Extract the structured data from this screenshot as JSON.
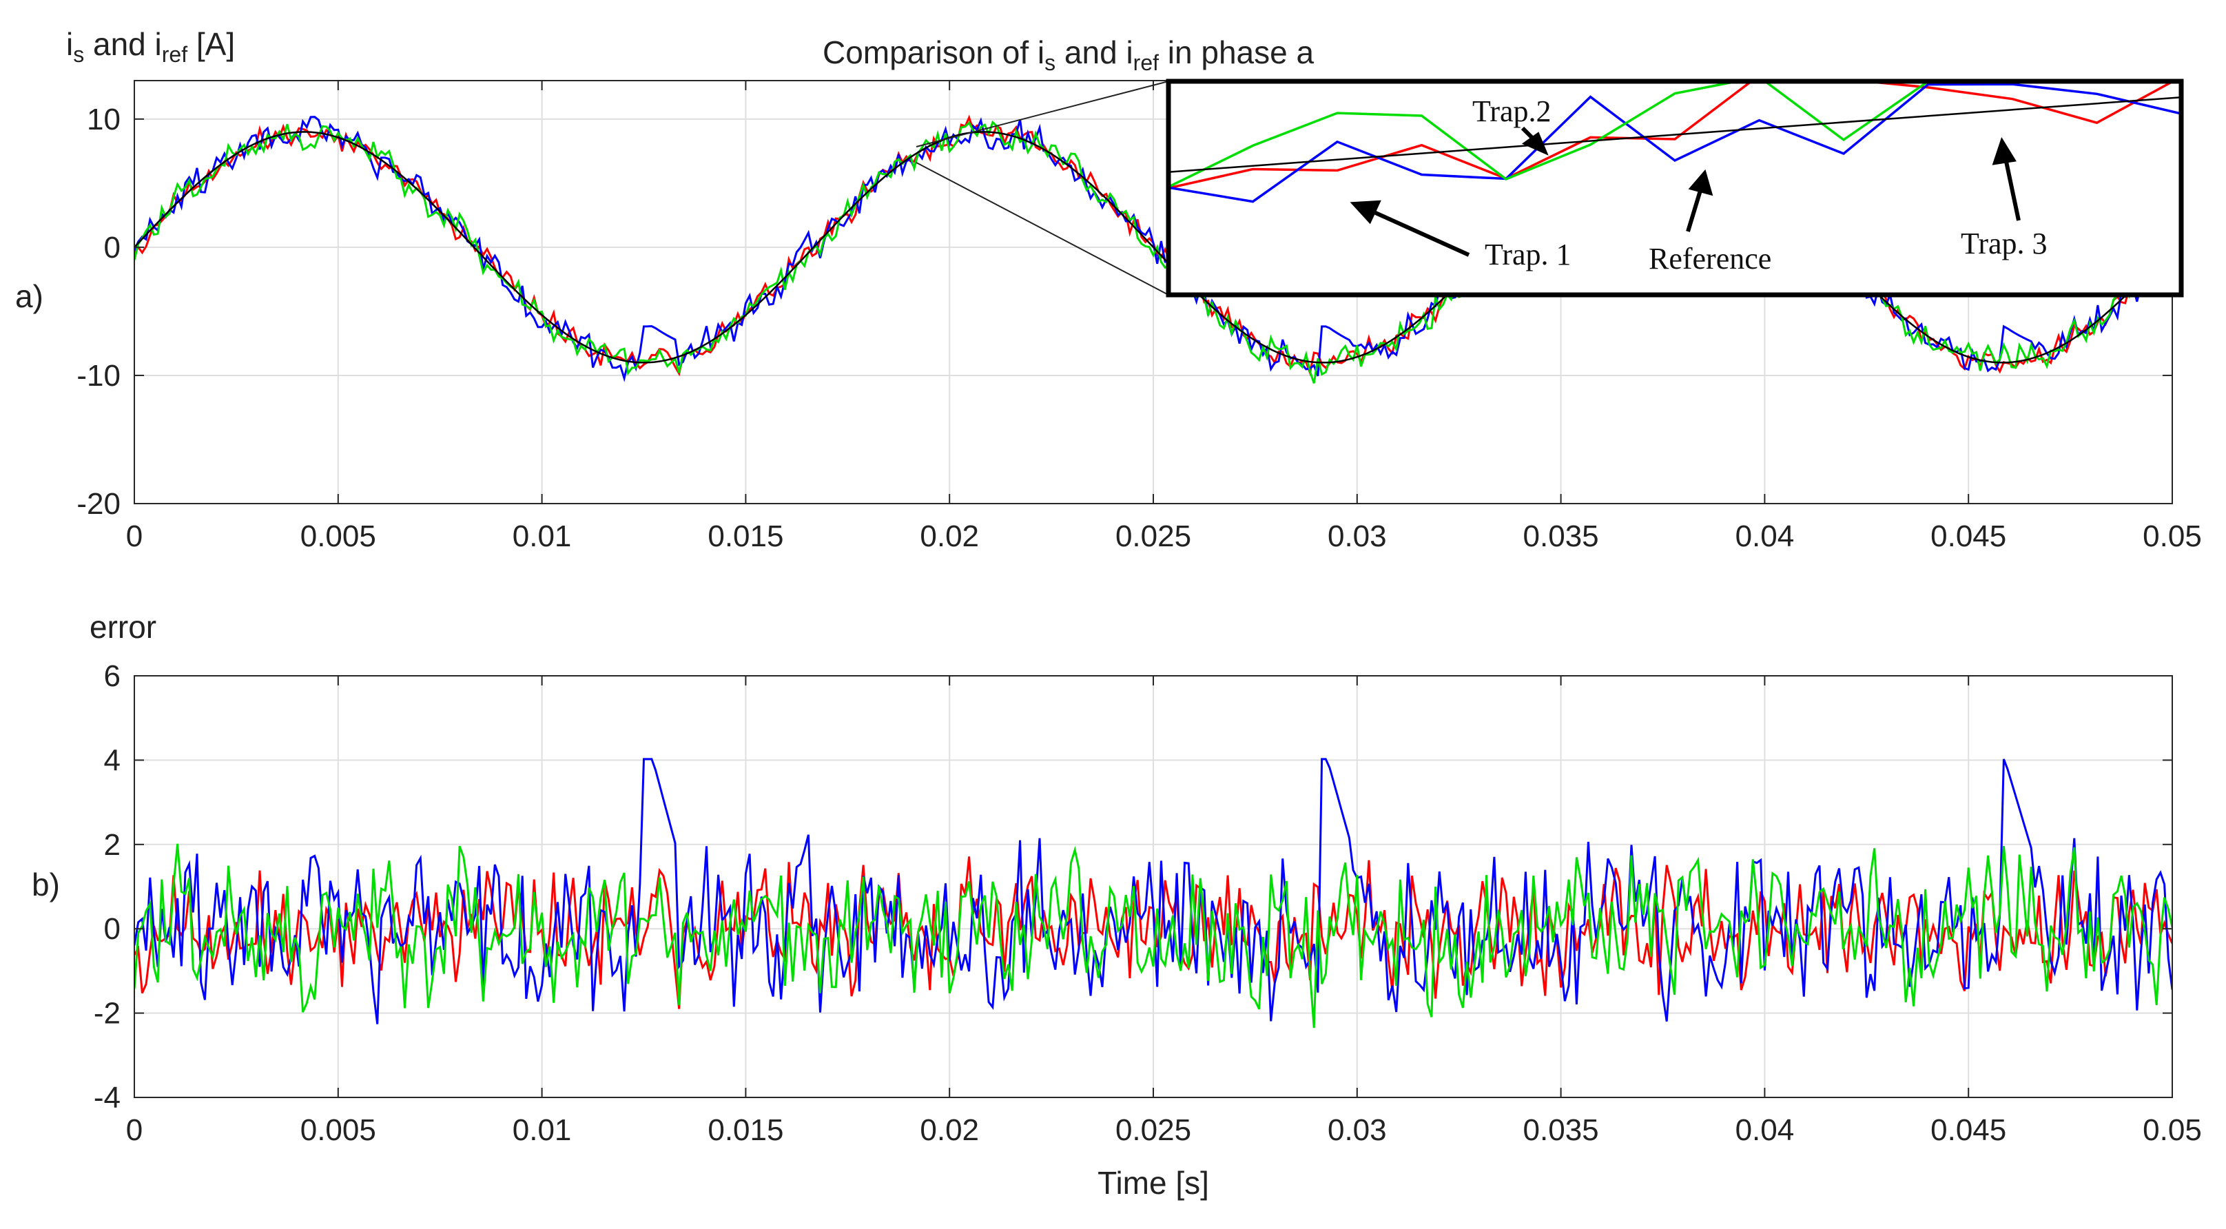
{
  "chart_data": [
    {
      "panel_label": "a)",
      "type": "line",
      "title": "Comparison of i_s and i_ref in phase a",
      "title_parts": [
        "Comparison of i",
        "s",
        " and i",
        "ref",
        " in phase a"
      ],
      "ylabel_parts": [
        "i",
        "s",
        " and i",
        "ref",
        "  [A]"
      ],
      "xlabel": "",
      "xlim": [
        0,
        0.05
      ],
      "ylim": [
        -20,
        13
      ],
      "xticks": [
        0,
        0.005,
        0.01,
        0.015,
        0.02,
        0.025,
        0.03,
        0.035,
        0.04,
        0.045,
        0.05
      ],
      "xtick_labels": [
        "0",
        "0.005",
        "0.01",
        "0.015",
        "0.02",
        "0.025",
        "0.03",
        "0.035",
        "0.04",
        "0.045",
        "0.05"
      ],
      "yticks": [
        -20,
        -10,
        0,
        10
      ],
      "ytick_labels": [
        "-20",
        "-10",
        "0",
        "10"
      ],
      "grid": true,
      "reference": {
        "amplitude": 9,
        "frequency_hz": 60,
        "color": "#000000"
      },
      "series": [
        {
          "color": "#ff0000",
          "role": "Trap. 1",
          "peak_overshoot": 1.5
        },
        {
          "color": "#0000ff",
          "role": "Trap.2",
          "peak_overshoot": 3.5
        },
        {
          "color": "#00dd00",
          "role": "Trap. 3",
          "peak_overshoot": 2.5
        }
      ],
      "inset_annotations": [
        {
          "text": "Trap.2",
          "target": "blue"
        },
        {
          "text": "Trap. 1",
          "target": "red"
        },
        {
          "text": "Reference",
          "target": "black"
        },
        {
          "text": "Trap. 3",
          "target": "green"
        }
      ]
    },
    {
      "panel_label": "b)",
      "type": "line",
      "title": "error",
      "xlabel": "Time [s]",
      "xlim": [
        0,
        0.05
      ],
      "ylim": [
        -4,
        6
      ],
      "xticks": [
        0,
        0.005,
        0.01,
        0.015,
        0.02,
        0.025,
        0.03,
        0.035,
        0.04,
        0.045,
        0.05
      ],
      "xtick_labels": [
        "0",
        "0.005",
        "0.01",
        "0.015",
        "0.02",
        "0.025",
        "0.03",
        "0.035",
        "0.04",
        "0.045",
        "0.05"
      ],
      "yticks": [
        -4,
        -2,
        0,
        2,
        4,
        6
      ],
      "ytick_labels": [
        "-4",
        "-2",
        "0",
        "2",
        "4",
        "6"
      ],
      "grid": true,
      "series": [
        {
          "color": "#ff0000",
          "amplitude": 2.5
        },
        {
          "color": "#0000ff",
          "amplitude": 3.5,
          "peaks": [
            [
              0.0125,
              4.8
            ],
            [
              0.0291,
              4.6
            ],
            [
              0.0458,
              4.3
            ]
          ]
        },
        {
          "color": "#00dd00",
          "amplitude": 3.0
        }
      ]
    }
  ]
}
